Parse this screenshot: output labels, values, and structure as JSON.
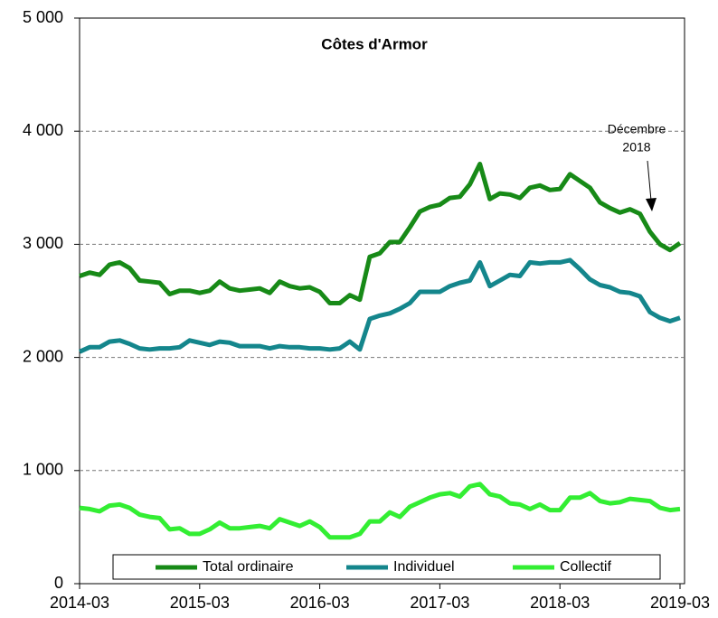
{
  "chart_data": {
    "type": "line",
    "title": "Côtes d'Armor",
    "annotation": [
      "Décembre",
      "2018"
    ],
    "categories": [
      "2014-03",
      null,
      null,
      null,
      null,
      null,
      null,
      null,
      null,
      null,
      null,
      null,
      "2015-03",
      null,
      null,
      null,
      null,
      null,
      null,
      null,
      null,
      null,
      null,
      null,
      "2016-03",
      null,
      null,
      null,
      null,
      null,
      null,
      null,
      null,
      null,
      null,
      null,
      "2017-03",
      null,
      null,
      null,
      null,
      null,
      null,
      null,
      null,
      null,
      null,
      null,
      "2018-03",
      null,
      null,
      null,
      null,
      null,
      null,
      null,
      null,
      null,
      null,
      null,
      "2019-03"
    ],
    "series": [
      {
        "name": "Total ordinaire",
        "color": "#178a17",
        "values": [
          2720,
          2750,
          2730,
          2820,
          2840,
          2790,
          2680,
          2670,
          2660,
          2560,
          2590,
          2590,
          2570,
          2590,
          2670,
          2610,
          2590,
          2600,
          2610,
          2570,
          2670,
          2630,
          2610,
          2620,
          2580,
          2480,
          2480,
          2550,
          2510,
          2890,
          2920,
          3020,
          3020,
          3150,
          3290,
          3330,
          3350,
          3410,
          3420,
          3530,
          3710,
          3400,
          3450,
          3440,
          3410,
          3500,
          3520,
          3480,
          3490,
          3620,
          3560,
          3500,
          3370,
          3320,
          3280,
          3310,
          3270,
          3110,
          3000,
          2950,
          3010
        ]
      },
      {
        "name": "Individuel",
        "color": "#14868c",
        "values": [
          2050,
          2090,
          2090,
          2140,
          2150,
          2120,
          2080,
          2070,
          2080,
          2080,
          2090,
          2150,
          2130,
          2110,
          2140,
          2130,
          2100,
          2100,
          2100,
          2080,
          2100,
          2090,
          2090,
          2080,
          2080,
          2070,
          2080,
          2140,
          2070,
          2340,
          2370,
          2390,
          2430,
          2480,
          2580,
          2580,
          2580,
          2630,
          2660,
          2680,
          2840,
          2630,
          2680,
          2730,
          2720,
          2840,
          2830,
          2840,
          2840,
          2860,
          2780,
          2690,
          2640,
          2620,
          2580,
          2570,
          2540,
          2400,
          2350,
          2320,
          2350
        ]
      },
      {
        "name": "Collectif",
        "color": "#33ee33",
        "values": [
          670,
          660,
          640,
          690,
          700,
          670,
          610,
          590,
          580,
          480,
          490,
          440,
          440,
          480,
          540,
          490,
          490,
          500,
          510,
          490,
          570,
          540,
          510,
          550,
          500,
          410,
          410,
          410,
          440,
          550,
          550,
          630,
          590,
          680,
          720,
          760,
          790,
          800,
          770,
          860,
          880,
          790,
          770,
          710,
          700,
          660,
          700,
          650,
          650,
          760,
          760,
          800,
          730,
          710,
          720,
          750,
          740,
          730,
          670,
          650,
          660
        ]
      }
    ],
    "ylim": [
      0,
      5000
    ],
    "yticks": [
      0,
      {
        "value": 1000,
        "label": "1 000"
      },
      {
        "value": 2000,
        "label": "2 000"
      },
      {
        "value": 3000,
        "label": "3 000"
      },
      {
        "value": 4000,
        "label": "4 000"
      },
      {
        "value": 5000,
        "label": "5 000"
      }
    ],
    "grid": true,
    "legend": "bottom"
  }
}
